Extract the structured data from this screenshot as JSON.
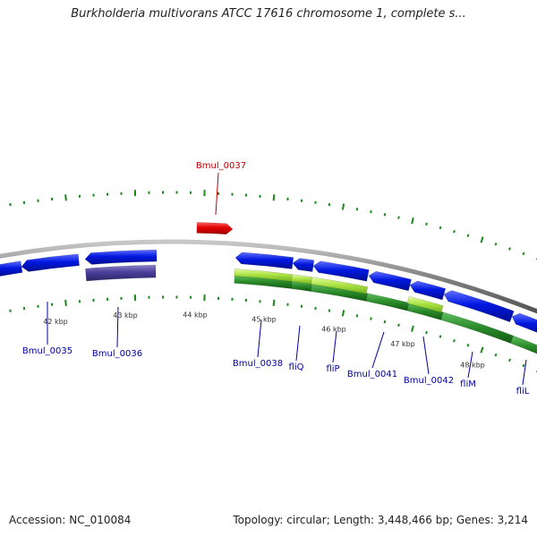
{
  "title": "Burkholderia multivorans ATCC 17616 chromosome 1, complete s...",
  "footer": {
    "accession_label": "Accession:",
    "accession_value": "NC_010084",
    "topology_label": "Topology:",
    "topology_value": "circular",
    "length_label": "Length:",
    "length_value": "3,448,466 bp",
    "genes_label": "Genes:",
    "genes_value": "3,214"
  },
  "colors": {
    "forward_gene": "#e00000",
    "reverse_gene": "#0018e0",
    "reverse_pseudo": "#4a3f9a",
    "feature_light": "#a8e040",
    "feature_dark": "#2a8a2a",
    "ticks": "#1a8a1a",
    "backbone": "#808080",
    "forward_label": "#c00000",
    "reverse_label": "#0000a0"
  },
  "scale_labels": [
    "42 kbp",
    "43 kbp",
    "44 kbp",
    "45 kbp",
    "46 kbp",
    "47 kbp",
    "48 kbp"
  ],
  "genes": {
    "forward": [
      {
        "id": "bmul-0037",
        "label": "Bmul_0037"
      }
    ],
    "reverse": [
      {
        "id": "bmul-0035",
        "label": "Bmul_0035"
      },
      {
        "id": "bmul-0036",
        "label": "Bmul_0036"
      },
      {
        "id": "bmul-0038",
        "label": "Bmul_0038"
      },
      {
        "id": "fliq",
        "label": "fliQ"
      },
      {
        "id": "flip",
        "label": "fliP"
      },
      {
        "id": "bmul-0041",
        "label": "Bmul_0041"
      },
      {
        "id": "bmul-0042",
        "label": "Bmul_0042"
      },
      {
        "id": "flim",
        "label": "fliM"
      },
      {
        "id": "flil",
        "label": "fliL"
      }
    ]
  }
}
